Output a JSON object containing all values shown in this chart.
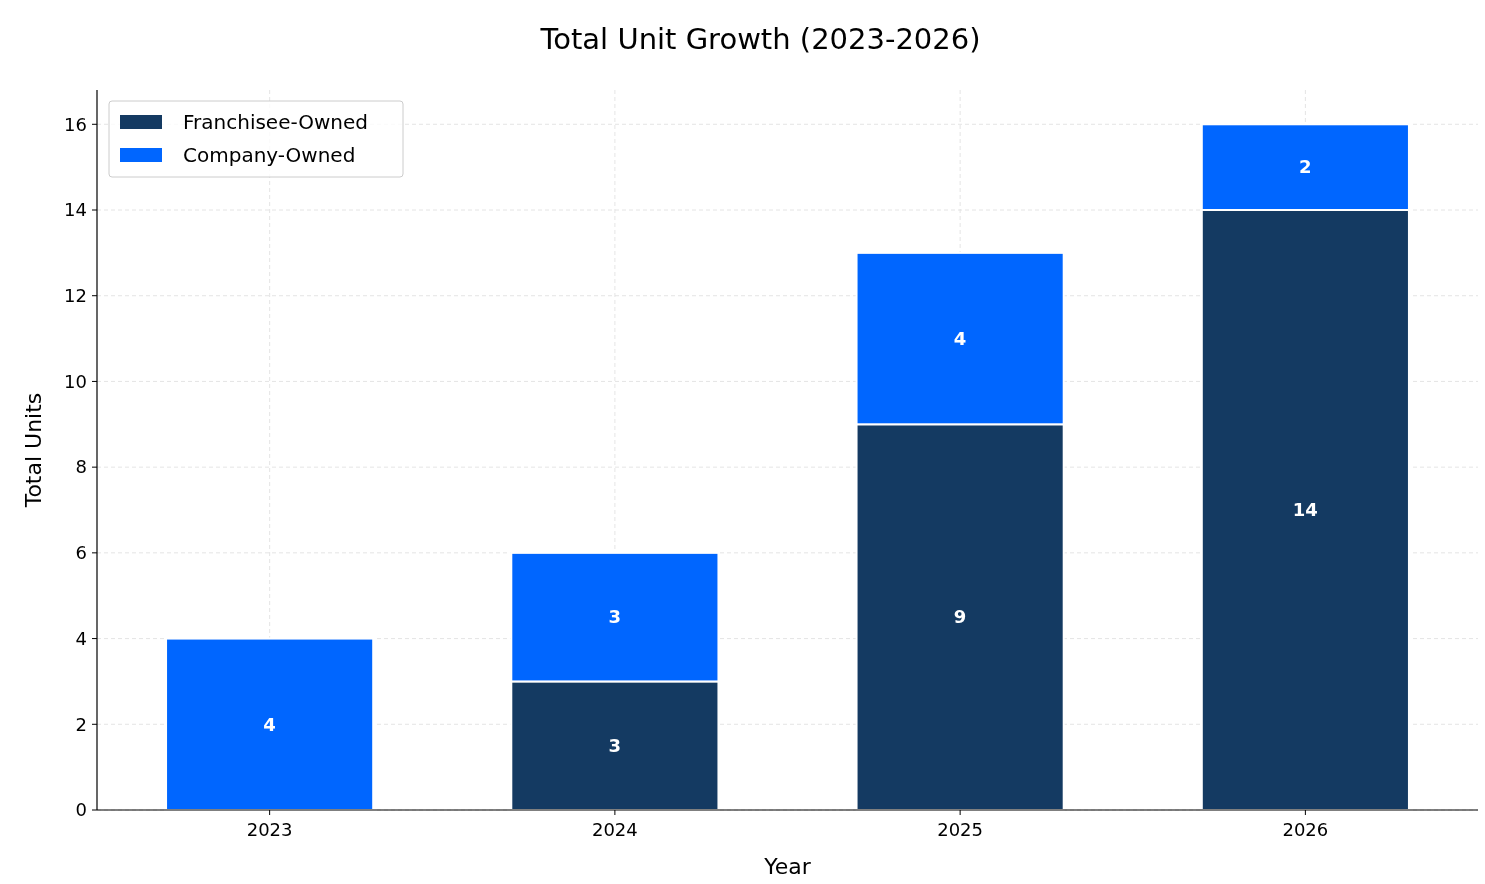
{
  "chart_data": {
    "type": "bar",
    "title": "Total Unit Growth (2023-2026)",
    "xlabel": "Year",
    "ylabel": "Total Units",
    "categories": [
      "2023",
      "2024",
      "2025",
      "2026"
    ],
    "series": [
      {
        "name": "Franchisee-Owned",
        "color": "#143a62",
        "values": [
          null,
          3,
          9,
          14
        ]
      },
      {
        "name": "Company-Owned",
        "color": "#0066ff",
        "values": [
          4,
          3,
          4,
          2
        ]
      }
    ],
    "stacked": true,
    "ylim": [
      0,
      16.8
    ],
    "yticks": [
      0,
      2,
      4,
      6,
      8,
      10,
      12,
      14,
      16
    ],
    "grid": true,
    "legend": "top left",
    "data_labels": true
  }
}
